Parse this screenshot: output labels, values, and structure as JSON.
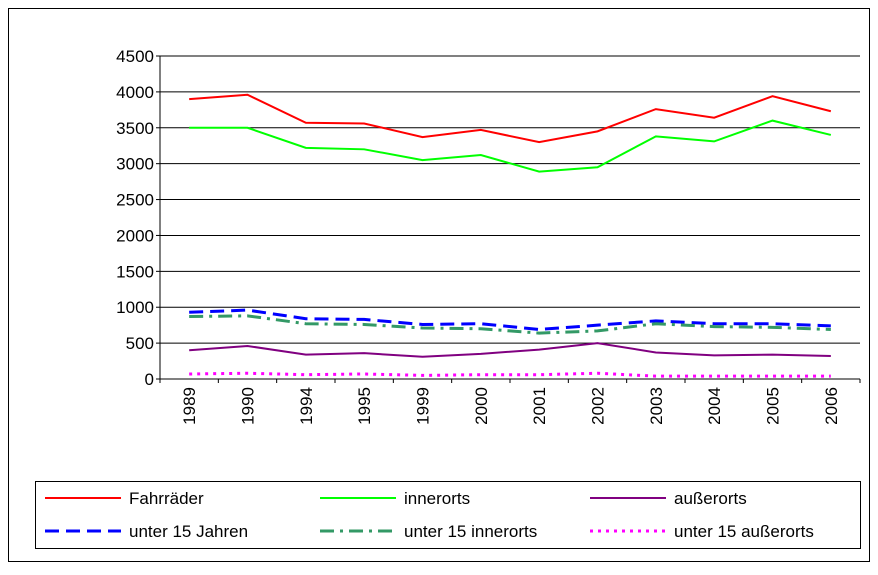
{
  "chart_data": {
    "type": "line",
    "categories": [
      "1989",
      "1990",
      "1994",
      "1995",
      "1999",
      "2000",
      "2001",
      "2002",
      "2003",
      "2004",
      "2005",
      "2006"
    ],
    "series": [
      {
        "name": "Fahrräder",
        "color": "#ff0000",
        "dash": "solid",
        "values": [
          3900,
          3960,
          3570,
          3560,
          3370,
          3470,
          3300,
          3450,
          3760,
          3640,
          3940,
          3730
        ]
      },
      {
        "name": "innerorts",
        "color": "#00ff00",
        "dash": "solid",
        "values": [
          3500,
          3500,
          3220,
          3200,
          3050,
          3120,
          2890,
          2950,
          3380,
          3310,
          3600,
          3400
        ]
      },
      {
        "name": "außerorts",
        "color": "#800080",
        "dash": "solid",
        "values": [
          400,
          460,
          340,
          360,
          310,
          350,
          410,
          500,
          370,
          330,
          340,
          320
        ]
      },
      {
        "name": "unter 15 Jahren",
        "color": "#0000ff",
        "dash": "dash",
        "values": [
          930,
          960,
          840,
          830,
          760,
          770,
          690,
          750,
          810,
          770,
          770,
          740
        ]
      },
      {
        "name": "unter 15 innerorts",
        "color": "#339966",
        "dash": "dashdot",
        "values": [
          870,
          880,
          770,
          760,
          710,
          700,
          640,
          670,
          770,
          730,
          720,
          690
        ]
      },
      {
        "name": "unter 15 außerorts",
        "color": "#ff00ff",
        "dash": "dot",
        "values": [
          70,
          80,
          60,
          70,
          50,
          60,
          60,
          80,
          40,
          40,
          40,
          40
        ]
      }
    ],
    "ylim": [
      0,
      4500
    ],
    "yticks": [
      0,
      500,
      1000,
      1500,
      2000,
      2500,
      3000,
      3500,
      4000,
      4500
    ],
    "grid": true,
    "legend": "bottom"
  }
}
